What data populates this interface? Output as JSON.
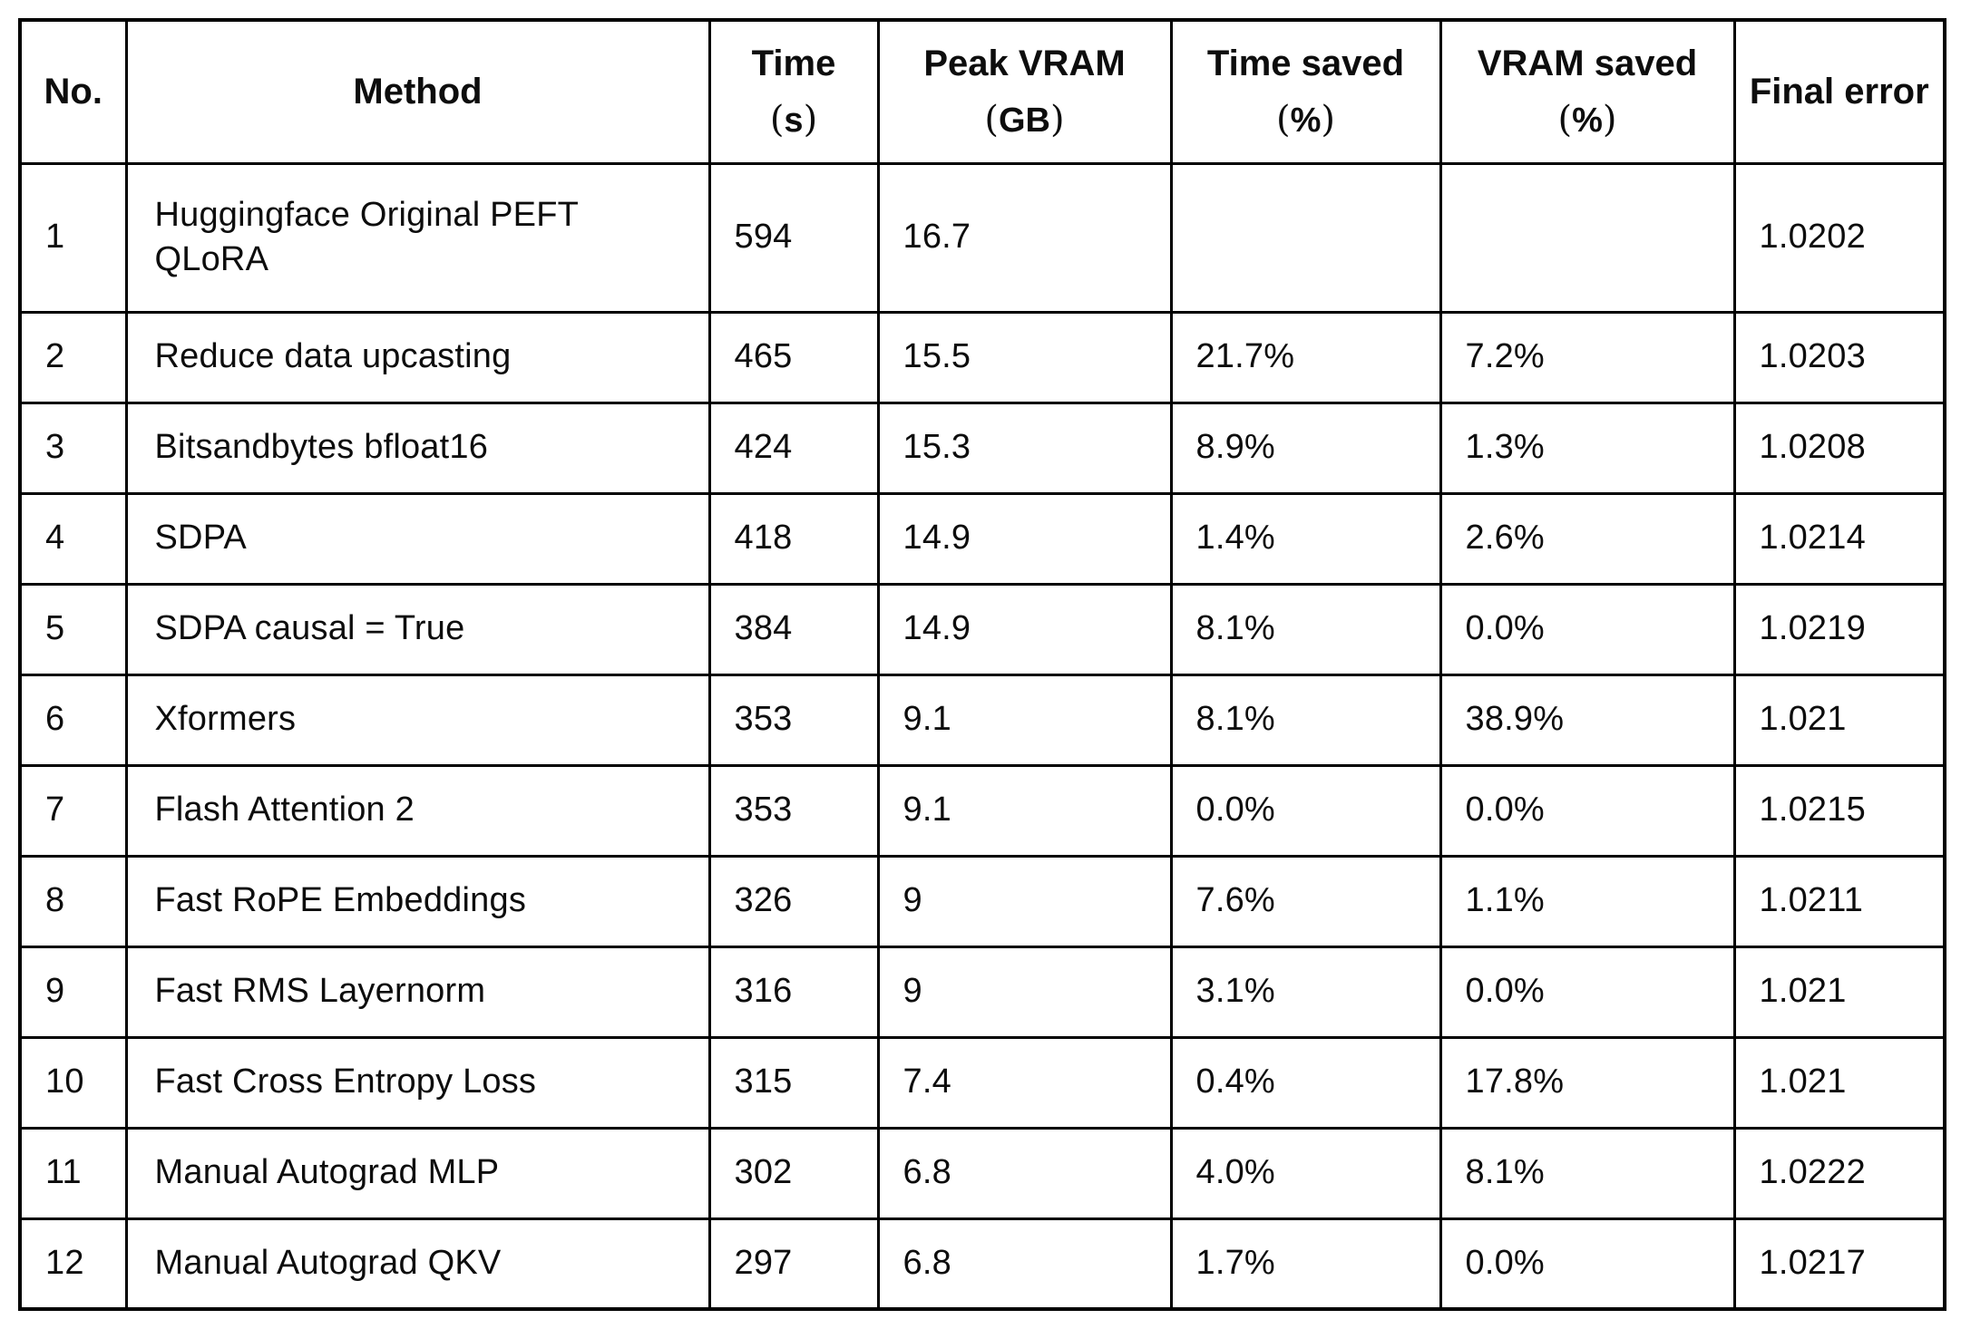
{
  "styles": {
    "background": "#ffffff",
    "border_color": "#000000",
    "text_color": "#0d0d0d"
  },
  "paren_open": "(",
  "paren_close": ")",
  "chart_data": {
    "type": "table",
    "title": "",
    "columns": [
      {
        "key": "no",
        "label": "No.",
        "unit": ""
      },
      {
        "key": "method",
        "label": "Method",
        "unit": ""
      },
      {
        "key": "time",
        "label": "Time",
        "unit": "s"
      },
      {
        "key": "peak-vram",
        "label": "Peak VRAM",
        "unit": "GB"
      },
      {
        "key": "time-saved",
        "label": "Time saved",
        "unit": "%"
      },
      {
        "key": "vram-saved",
        "label": "VRAM saved",
        "unit": "%"
      },
      {
        "key": "final-error",
        "label": "Final error",
        "unit": ""
      }
    ],
    "rows": [
      [
        "1",
        "Huggingface Original PEFT QLoRA",
        "594",
        "16.7",
        "",
        "",
        "1.0202"
      ],
      [
        "2",
        "Reduce data upcasting",
        "465",
        "15.5",
        "21.7%",
        "7.2%",
        "1.0203"
      ],
      [
        "3",
        "Bitsandbytes bfloat16",
        "424",
        "15.3",
        "8.9%",
        "1.3%",
        "1.0208"
      ],
      [
        "4",
        "SDPA",
        "418",
        "14.9",
        "1.4%",
        "2.6%",
        "1.0214"
      ],
      [
        "5",
        "SDPA causal = True",
        "384",
        "14.9",
        "8.1%",
        "0.0%",
        "1.0219"
      ],
      [
        "6",
        "Xformers",
        "353",
        "9.1",
        "8.1%",
        "38.9%",
        "1.021"
      ],
      [
        "7",
        "Flash Attention 2",
        "353",
        "9.1",
        "0.0%",
        "0.0%",
        "1.0215"
      ],
      [
        "8",
        "Fast RoPE Embeddings",
        "326",
        "9",
        "7.6%",
        "1.1%",
        "1.0211"
      ],
      [
        "9",
        "Fast RMS Layernorm",
        "316",
        "9",
        "3.1%",
        "0.0%",
        "1.021"
      ],
      [
        "10",
        "Fast Cross Entropy Loss",
        "315",
        "7.4",
        "0.4%",
        "17.8%",
        "1.021"
      ],
      [
        "11",
        "Manual Autograd MLP",
        "302",
        "6.8",
        "4.0%",
        "8.1%",
        "1.0222"
      ],
      [
        "12",
        "Manual Autograd QKV",
        "297",
        "6.8",
        "1.7%",
        "0.0%",
        "1.0217"
      ]
    ]
  }
}
